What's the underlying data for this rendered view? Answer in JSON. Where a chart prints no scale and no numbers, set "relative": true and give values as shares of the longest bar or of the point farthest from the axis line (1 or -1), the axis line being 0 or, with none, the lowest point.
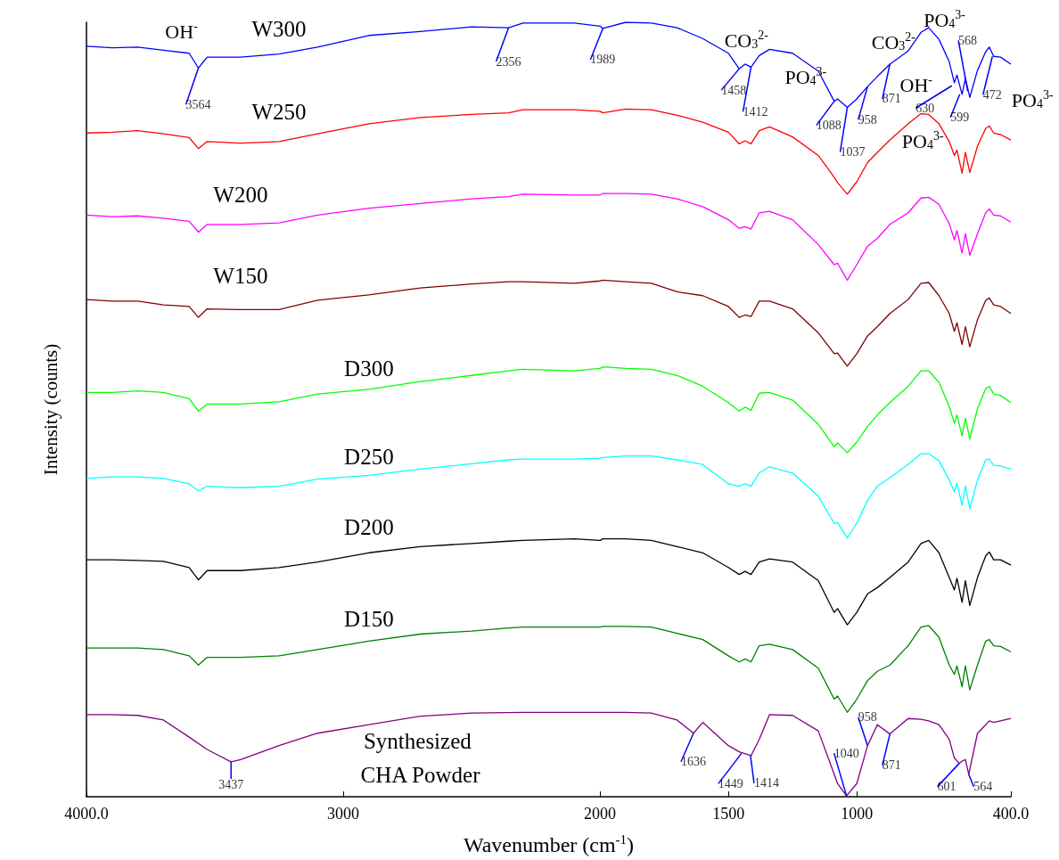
{
  "chart_data": {
    "type": "line",
    "relative": true,
    "xlabel": "Wavenumber (cm$^{-1}$)",
    "ylabel": "Intensity (counts)",
    "xlim": [
      4000,
      400
    ],
    "xticks": [
      {
        "value": 4000,
        "label": "4000.0"
      },
      3000,
      2000,
      1500,
      1000,
      {
        "value": 400,
        "label": "400.0"
      }
    ],
    "x": [
      4000,
      3900,
      3800,
      3700,
      3600,
      3564,
      3530,
      3400,
      3250,
      3100,
      2900,
      2700,
      2500,
      2356,
      2300,
      2100,
      2000,
      1989,
      1900,
      1800,
      1700,
      1600,
      1500,
      1458,
      1435,
      1412,
      1380,
      1340,
      1250,
      1150,
      1088,
      1075,
      1037,
      1000,
      958,
      920,
      871,
      800,
      750,
      720,
      680,
      640,
      620,
      610,
      590,
      577,
      560,
      530,
      498,
      484,
      467,
      440,
      400
    ],
    "series": [
      {
        "name": "W300",
        "color": "#0000ff",
        "values": [
          0.969,
          0.967,
          0.968,
          0.964,
          0.96,
          0.941,
          0.955,
          0.955,
          0.959,
          0.968,
          0.983,
          0.988,
          0.994,
          0.993,
          0.999,
          0.999,
          0.995,
          0.992,
          1.0,
          0.999,
          0.993,
          0.979,
          0.96,
          0.94,
          0.946,
          0.942,
          0.957,
          0.965,
          0.96,
          0.937,
          0.898,
          0.901,
          0.89,
          0.901,
          0.917,
          0.93,
          0.946,
          0.963,
          0.987,
          0.993,
          0.978,
          0.949,
          0.922,
          0.932,
          0.907,
          0.928,
          0.903,
          0.938,
          0.962,
          0.968,
          0.956,
          0.955,
          0.946
        ]
      },
      {
        "name": "W250",
        "color": "#ff0000",
        "values": [
          0.857,
          0.858,
          0.86,
          0.856,
          0.851,
          0.837,
          0.846,
          0.844,
          0.846,
          0.856,
          0.869,
          0.877,
          0.881,
          0.883,
          0.887,
          0.887,
          0.885,
          0.883,
          0.888,
          0.887,
          0.88,
          0.871,
          0.858,
          0.843,
          0.847,
          0.843,
          0.86,
          0.865,
          0.852,
          0.828,
          0.8,
          0.793,
          0.778,
          0.794,
          0.819,
          0.832,
          0.848,
          0.869,
          0.882,
          0.881,
          0.869,
          0.846,
          0.828,
          0.835,
          0.805,
          0.832,
          0.806,
          0.84,
          0.863,
          0.866,
          0.857,
          0.855,
          0.848
        ]
      },
      {
        "name": "W200",
        "color": "#ff00ff",
        "values": [
          0.751,
          0.749,
          0.75,
          0.747,
          0.743,
          0.729,
          0.739,
          0.739,
          0.741,
          0.751,
          0.76,
          0.766,
          0.772,
          0.775,
          0.778,
          0.777,
          0.777,
          0.779,
          0.779,
          0.778,
          0.772,
          0.762,
          0.745,
          0.734,
          0.736,
          0.733,
          0.754,
          0.756,
          0.745,
          0.713,
          0.687,
          0.689,
          0.667,
          0.687,
          0.711,
          0.721,
          0.739,
          0.754,
          0.773,
          0.774,
          0.765,
          0.74,
          0.719,
          0.731,
          0.702,
          0.727,
          0.699,
          0.727,
          0.754,
          0.759,
          0.751,
          0.75,
          0.742
        ]
      },
      {
        "name": "W150",
        "color": "#800000",
        "values": [
          0.642,
          0.64,
          0.64,
          0.635,
          0.633,
          0.619,
          0.63,
          0.629,
          0.629,
          0.641,
          0.648,
          0.657,
          0.662,
          0.665,
          0.665,
          0.663,
          0.666,
          0.667,
          0.665,
          0.663,
          0.652,
          0.647,
          0.633,
          0.619,
          0.622,
          0.62,
          0.64,
          0.64,
          0.63,
          0.599,
          0.572,
          0.573,
          0.556,
          0.572,
          0.595,
          0.607,
          0.624,
          0.642,
          0.663,
          0.664,
          0.647,
          0.624,
          0.601,
          0.612,
          0.584,
          0.607,
          0.581,
          0.616,
          0.641,
          0.644,
          0.635,
          0.633,
          0.624
        ]
      },
      {
        "name": "D300",
        "color": "#00ff00",
        "values": [
          0.522,
          0.522,
          0.524,
          0.522,
          0.514,
          0.498,
          0.507,
          0.507,
          0.51,
          0.52,
          0.526,
          0.536,
          0.544,
          0.55,
          0.552,
          0.55,
          0.553,
          0.555,
          0.553,
          0.552,
          0.544,
          0.53,
          0.509,
          0.498,
          0.503,
          0.499,
          0.521,
          0.522,
          0.512,
          0.481,
          0.452,
          0.457,
          0.444,
          0.458,
          0.478,
          0.493,
          0.509,
          0.53,
          0.55,
          0.55,
          0.535,
          0.504,
          0.482,
          0.493,
          0.466,
          0.489,
          0.462,
          0.501,
          0.527,
          0.53,
          0.52,
          0.518,
          0.509
        ]
      },
      {
        "name": "D250",
        "color": "#00ffff",
        "values": [
          0.411,
          0.413,
          0.413,
          0.411,
          0.404,
          0.395,
          0.401,
          0.399,
          0.401,
          0.41,
          0.415,
          0.423,
          0.43,
          0.435,
          0.436,
          0.436,
          0.437,
          0.438,
          0.44,
          0.44,
          0.435,
          0.429,
          0.404,
          0.401,
          0.404,
          0.401,
          0.418,
          0.426,
          0.418,
          0.388,
          0.353,
          0.354,
          0.334,
          0.353,
          0.383,
          0.401,
          0.412,
          0.429,
          0.443,
          0.443,
          0.434,
          0.409,
          0.394,
          0.405,
          0.376,
          0.401,
          0.372,
          0.409,
          0.435,
          0.436,
          0.428,
          0.427,
          0.423
        ]
      },
      {
        "name": "D200",
        "color": "#000000",
        "values": [
          0.306,
          0.306,
          0.305,
          0.304,
          0.296,
          0.28,
          0.292,
          0.292,
          0.296,
          0.303,
          0.315,
          0.323,
          0.327,
          0.33,
          0.331,
          0.333,
          0.331,
          0.333,
          0.333,
          0.331,
          0.323,
          0.315,
          0.296,
          0.287,
          0.291,
          0.287,
          0.303,
          0.307,
          0.303,
          0.279,
          0.238,
          0.243,
          0.222,
          0.238,
          0.262,
          0.27,
          0.283,
          0.303,
          0.327,
          0.331,
          0.315,
          0.283,
          0.267,
          0.282,
          0.251,
          0.279,
          0.247,
          0.283,
          0.311,
          0.316,
          0.306,
          0.306,
          0.299
        ]
      },
      {
        "name": "D150",
        "color": "#008000",
        "values": [
          0.192,
          0.192,
          0.192,
          0.19,
          0.182,
          0.17,
          0.18,
          0.18,
          0.182,
          0.19,
          0.201,
          0.21,
          0.214,
          0.218,
          0.219,
          0.219,
          0.219,
          0.22,
          0.22,
          0.219,
          0.211,
          0.203,
          0.182,
          0.174,
          0.178,
          0.174,
          0.195,
          0.197,
          0.19,
          0.166,
          0.126,
          0.13,
          0.109,
          0.126,
          0.15,
          0.162,
          0.17,
          0.195,
          0.219,
          0.221,
          0.206,
          0.17,
          0.158,
          0.169,
          0.142,
          0.169,
          0.138,
          0.17,
          0.201,
          0.203,
          0.195,
          0.194,
          0.187
        ]
      },
      {
        "name": "Synthesized CHA Powder",
        "color": "#800080",
        "x": [
          4000,
          3900,
          3800,
          3700,
          3600,
          3530,
          3437,
          3400,
          3250,
          3100,
          2900,
          2700,
          2500,
          2300,
          2100,
          1900,
          1800,
          1700,
          1636,
          1600,
          1500,
          1458,
          1412,
          1380,
          1340,
          1250,
          1150,
          1088,
          1075,
          1040,
          1000,
          958,
          920,
          871,
          800,
          750,
          720,
          680,
          640,
          620,
          601,
          590,
          577,
          564,
          530,
          498,
          484,
          467,
          440,
          400
        ],
        "values": [
          0.106,
          0.106,
          0.105,
          0.099,
          0.077,
          0.061,
          0.045,
          0.048,
          0.066,
          0.082,
          0.093,
          0.104,
          0.108,
          0.109,
          0.109,
          0.109,
          0.108,
          0.099,
          0.082,
          0.096,
          0.066,
          0.058,
          0.053,
          0.074,
          0.106,
          0.105,
          0.085,
          0.029,
          0.017,
          0.001,
          0.017,
          0.066,
          0.093,
          0.081,
          0.101,
          0.1,
          0.098,
          0.093,
          0.074,
          0.05,
          0.043,
          0.046,
          0.048,
          0.029,
          0.082,
          0.093,
          0.098,
          0.096,
          0.098,
          0.101
        ]
      }
    ],
    "annotations": [
      "OH$^{-}$",
      {
        "text": "3564",
        "x": 3564,
        "y": 0.941
      },
      {
        "text": "2356",
        "x": 2356,
        "y": 0.993
      },
      {
        "text": "1989",
        "x": 1989,
        "y": 0.992
      },
      "CO$_{3}$$^{2-}$",
      {
        "text": "1458",
        "x": 1458,
        "y": 0.94
      },
      {
        "text": "1412",
        "x": 1412,
        "y": 0.942
      },
      "PO$_{4}$$^{3-}$",
      {
        "text": "1088",
        "x": 1088,
        "y": 0.898
      },
      {
        "text": "1037",
        "x": 1037,
        "y": 0.89
      },
      {
        "text": "958",
        "x": 958,
        "y": 0.917
      },
      "PO$_{4}$$^{3-}$",
      "CO$_{3}$$^{2-}$",
      {
        "text": "871",
        "x": 871,
        "y": 0.946
      },
      "OH$^{-}$",
      {
        "text": "630",
        "x": 630,
        "y": 0.918
      },
      "PO$_{4}$$^{3-}$",
      {
        "text": "568",
        "x": 568,
        "y": 0.911
      },
      {
        "text": "599",
        "x": 599,
        "y": 0.907
      },
      {
        "text": "472",
        "x": 472,
        "y": 0.956
      },
      "PO$_{4}$$^{3-}$",
      {
        "text": "3437",
        "x": 3437,
        "y": 0.045
      },
      {
        "text": "1636",
        "x": 1636,
        "y": 0.082
      },
      {
        "text": "1449",
        "x": 1449,
        "y": 0.056
      },
      {
        "text": "1414",
        "x": 1414,
        "y": 0.053
      },
      {
        "text": "1040",
        "x": 1040,
        "y": 0.001
      },
      {
        "text": "958",
        "x": 958,
        "y": 0.066
      },
      {
        "text": "871",
        "x": 871,
        "y": 0.081
      },
      {
        "text": "601",
        "x": 601,
        "y": 0.043
      },
      {
        "text": "564",
        "x": 564,
        "y": 0.029
      }
    ]
  }
}
